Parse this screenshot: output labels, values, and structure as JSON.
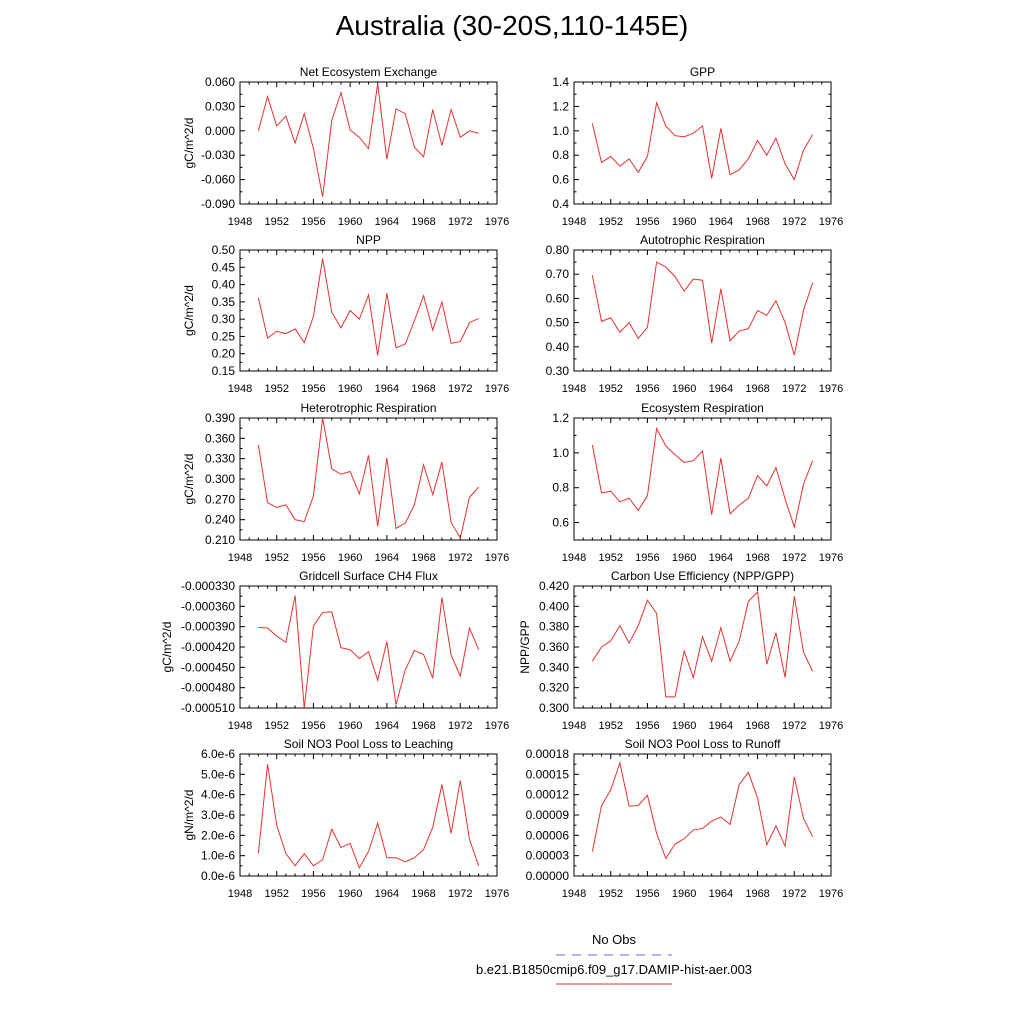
{
  "title": "Australia (30-20S,110-145E)",
  "legend": {
    "no_obs_label": "No Obs",
    "no_obs_color": "#6a6ad8",
    "case_label": "b.e21.B1850cmip6.f09_g17.DAMIP-hist-aer.003",
    "case_color": "#e63232"
  },
  "chart_data": [
    {
      "type": "line",
      "title": "Net Ecosystem Exchange",
      "ylabel": "gC/m^2/d",
      "xlim": [
        1948,
        1976
      ],
      "xticks": [
        1948,
        1952,
        1956,
        1960,
        1964,
        1968,
        1972,
        1976
      ],
      "ylim": [
        -0.09,
        0.06
      ],
      "yticks": [
        -0.09,
        -0.06,
        -0.03,
        0.0,
        0.03,
        0.06
      ],
      "yticklabels": [
        "-0.090",
        "-0.060",
        "-0.030",
        "0.000",
        "0.030",
        "0.060"
      ],
      "series": [
        {
          "x": [
            1950,
            1951,
            1952,
            1953,
            1954,
            1955,
            1956,
            1957,
            1958,
            1959,
            1960,
            1961,
            1962,
            1963,
            1964,
            1965,
            1966,
            1967,
            1968,
            1969,
            1970,
            1971,
            1972,
            1973,
            1974
          ],
          "y": [
            0.0,
            0.042,
            0.006,
            0.018,
            -0.015,
            0.021,
            -0.022,
            -0.081,
            0.013,
            0.047,
            0.001,
            -0.008,
            -0.022,
            0.058,
            -0.035,
            0.027,
            0.021,
            -0.02,
            -0.032,
            0.026,
            -0.018,
            0.026,
            -0.008,
            0.0,
            -0.003
          ],
          "color": "#e63232"
        }
      ]
    },
    {
      "type": "line",
      "title": "GPP",
      "ylabel": "",
      "xlim": [
        1948,
        1976
      ],
      "xticks": [
        1948,
        1952,
        1956,
        1960,
        1964,
        1968,
        1972,
        1976
      ],
      "ylim": [
        0.4,
        1.4
      ],
      "yticks": [
        0.4,
        0.6,
        0.8,
        1.0,
        1.2,
        1.4
      ],
      "yticklabels": [
        "0.4",
        "0.6",
        "0.8",
        "1.0",
        "1.2",
        "1.4"
      ],
      "series": [
        {
          "x": [
            1950,
            1951,
            1952,
            1953,
            1954,
            1955,
            1956,
            1957,
            1958,
            1959,
            1960,
            1961,
            1962,
            1963,
            1964,
            1965,
            1966,
            1967,
            1968,
            1969,
            1970,
            1971,
            1972,
            1973,
            1974
          ],
          "y": [
            1.06,
            0.74,
            0.79,
            0.71,
            0.77,
            0.66,
            0.79,
            1.23,
            1.04,
            0.96,
            0.95,
            0.98,
            1.04,
            0.61,
            1.02,
            0.64,
            0.68,
            0.77,
            0.92,
            0.8,
            0.94,
            0.73,
            0.6,
            0.84,
            0.97
          ],
          "color": "#e63232"
        }
      ]
    },
    {
      "type": "line",
      "title": "NPP",
      "ylabel": "gC/m^2/d",
      "xlim": [
        1948,
        1976
      ],
      "xticks": [
        1948,
        1952,
        1956,
        1960,
        1964,
        1968,
        1972,
        1976
      ],
      "ylim": [
        0.15,
        0.5
      ],
      "yticks": [
        0.15,
        0.2,
        0.25,
        0.3,
        0.35,
        0.4,
        0.45,
        0.5
      ],
      "yticklabels": [
        "0.15",
        "0.20",
        "0.25",
        "0.30",
        "0.35",
        "0.40",
        "0.45",
        "0.50"
      ],
      "series": [
        {
          "x": [
            1950,
            1951,
            1952,
            1953,
            1954,
            1955,
            1956,
            1957,
            1958,
            1959,
            1960,
            1961,
            1962,
            1963,
            1964,
            1965,
            1966,
            1967,
            1968,
            1969,
            1970,
            1971,
            1972,
            1973,
            1974
          ],
          "y": [
            0.362,
            0.245,
            0.265,
            0.258,
            0.272,
            0.232,
            0.308,
            0.475,
            0.32,
            0.275,
            0.325,
            0.3,
            0.37,
            0.195,
            0.375,
            0.217,
            0.228,
            0.295,
            0.368,
            0.268,
            0.35,
            0.23,
            0.235,
            0.29,
            0.302
          ],
          "color": "#e63232"
        }
      ]
    },
    {
      "type": "line",
      "title": "Autotrophic Respiration",
      "ylabel": "",
      "xlim": [
        1948,
        1976
      ],
      "xticks": [
        1948,
        1952,
        1956,
        1960,
        1964,
        1968,
        1972,
        1976
      ],
      "ylim": [
        0.3,
        0.8
      ],
      "yticks": [
        0.3,
        0.4,
        0.5,
        0.6,
        0.7,
        0.8
      ],
      "yticklabels": [
        "0.30",
        "0.40",
        "0.50",
        "0.60",
        "0.70",
        "0.80"
      ],
      "series": [
        {
          "x": [
            1950,
            1951,
            1952,
            1953,
            1954,
            1955,
            1956,
            1957,
            1958,
            1959,
            1960,
            1961,
            1962,
            1963,
            1964,
            1965,
            1966,
            1967,
            1968,
            1969,
            1970,
            1971,
            1972,
            1973,
            1974
          ],
          "y": [
            0.695,
            0.505,
            0.52,
            0.46,
            0.5,
            0.435,
            0.48,
            0.75,
            0.73,
            0.69,
            0.63,
            0.68,
            0.675,
            0.415,
            0.64,
            0.425,
            0.465,
            0.475,
            0.55,
            0.53,
            0.59,
            0.5,
            0.365,
            0.55,
            0.665
          ],
          "color": "#e63232"
        }
      ]
    },
    {
      "type": "line",
      "title": "Heterotrophic Respiration",
      "ylabel": "gC/m^2/d",
      "xlim": [
        1948,
        1976
      ],
      "xticks": [
        1948,
        1952,
        1956,
        1960,
        1964,
        1968,
        1972,
        1976
      ],
      "ylim": [
        0.21,
        0.39
      ],
      "yticks": [
        0.21,
        0.24,
        0.27,
        0.3,
        0.33,
        0.36,
        0.39
      ],
      "yticklabels": [
        "0.210",
        "0.240",
        "0.270",
        "0.300",
        "0.330",
        "0.360",
        "0.390"
      ],
      "series": [
        {
          "x": [
            1950,
            1951,
            1952,
            1953,
            1954,
            1955,
            1956,
            1957,
            1958,
            1959,
            1960,
            1961,
            1962,
            1963,
            1964,
            1965,
            1966,
            1967,
            1968,
            1969,
            1970,
            1971,
            1972,
            1973,
            1974
          ],
          "y": [
            0.35,
            0.265,
            0.258,
            0.262,
            0.24,
            0.237,
            0.275,
            0.39,
            0.315,
            0.307,
            0.311,
            0.278,
            0.335,
            0.23,
            0.331,
            0.227,
            0.235,
            0.262,
            0.321,
            0.277,
            0.325,
            0.236,
            0.213,
            0.273,
            0.288
          ],
          "color": "#e63232"
        }
      ]
    },
    {
      "type": "line",
      "title": "Ecosystem Respiration",
      "ylabel": "",
      "xlim": [
        1948,
        1976
      ],
      "xticks": [
        1948,
        1952,
        1956,
        1960,
        1964,
        1968,
        1972,
        1976
      ],
      "ylim": [
        0.5,
        1.2
      ],
      "yticks": [
        0.6,
        0.8,
        1.0,
        1.2
      ],
      "yticklabels": [
        "0.6",
        "0.8",
        "1.0",
        "1.2"
      ],
      "series": [
        {
          "x": [
            1950,
            1951,
            1952,
            1953,
            1954,
            1955,
            1956,
            1957,
            1958,
            1959,
            1960,
            1961,
            1962,
            1963,
            1964,
            1965,
            1966,
            1967,
            1968,
            1969,
            1970,
            1971,
            1972,
            1973,
            1974
          ],
          "y": [
            1.045,
            0.77,
            0.78,
            0.72,
            0.74,
            0.67,
            0.755,
            1.14,
            1.04,
            0.99,
            0.945,
            0.955,
            1.01,
            0.645,
            0.97,
            0.65,
            0.7,
            0.74,
            0.87,
            0.81,
            0.915,
            0.735,
            0.575,
            0.82,
            0.955
          ],
          "color": "#e63232"
        }
      ]
    },
    {
      "type": "line",
      "title": "Gridcell Surface CH4 Flux",
      "ylabel": "gC/m^2/d",
      "xlim": [
        1948,
        1976
      ],
      "xticks": [
        1948,
        1952,
        1956,
        1960,
        1964,
        1968,
        1972,
        1976
      ],
      "ylim": [
        -0.00051,
        -0.00033
      ],
      "yticks": [
        -0.00051,
        -0.00048,
        -0.00045,
        -0.00042,
        -0.00039,
        -0.00036,
        -0.00033
      ],
      "yticklabels": [
        "-0.000510",
        "-0.000480",
        "-0.000450",
        "-0.000420",
        "-0.000390",
        "-0.000360",
        "-0.000330"
      ],
      "series": [
        {
          "x": [
            1950,
            1951,
            1952,
            1953,
            1954,
            1955,
            1956,
            1957,
            1958,
            1959,
            1960,
            1961,
            1962,
            1963,
            1964,
            1965,
            1966,
            1967,
            1968,
            1969,
            1970,
            1971,
            1972,
            1973,
            1974
          ],
          "y": [
            -0.000391,
            -0.000392,
            -0.000404,
            -0.000413,
            -0.000344,
            -0.00051,
            -0.000389,
            -0.000369,
            -0.000368,
            -0.000421,
            -0.000424,
            -0.000437,
            -0.000427,
            -0.000469,
            -0.000412,
            -0.000505,
            -0.000454,
            -0.000425,
            -0.000431,
            -0.000466,
            -0.000347,
            -0.000432,
            -0.000463,
            -0.000392,
            -0.000424
          ],
          "color": "#e63232"
        }
      ]
    },
    {
      "type": "line",
      "title": "Carbon Use Efficiency (NPP/GPP)",
      "ylabel": "NPP/GPP",
      "xlim": [
        1948,
        1976
      ],
      "xticks": [
        1948,
        1952,
        1956,
        1960,
        1964,
        1968,
        1972,
        1976
      ],
      "ylim": [
        0.3,
        0.42
      ],
      "yticks": [
        0.3,
        0.32,
        0.34,
        0.36,
        0.38,
        0.4,
        0.42
      ],
      "yticklabels": [
        "0.300",
        "0.320",
        "0.340",
        "0.360",
        "0.380",
        "0.400",
        "0.420"
      ],
      "series": [
        {
          "x": [
            1950,
            1951,
            1952,
            1953,
            1954,
            1955,
            1956,
            1957,
            1958,
            1959,
            1960,
            1961,
            1962,
            1963,
            1964,
            1965,
            1966,
            1967,
            1968,
            1969,
            1970,
            1971,
            1972,
            1973,
            1974
          ],
          "y": [
            0.346,
            0.36,
            0.366,
            0.381,
            0.364,
            0.381,
            0.406,
            0.393,
            0.311,
            0.311,
            0.356,
            0.33,
            0.37,
            0.346,
            0.379,
            0.346,
            0.366,
            0.405,
            0.414,
            0.343,
            0.374,
            0.33,
            0.41,
            0.355,
            0.336
          ],
          "color": "#e63232"
        }
      ]
    },
    {
      "type": "line",
      "title": "Soil NO3 Pool Loss to Leaching",
      "ylabel": "gN/m^2/d",
      "xlim": [
        1948,
        1976
      ],
      "xticks": [
        1948,
        1952,
        1956,
        1960,
        1964,
        1968,
        1972,
        1976
      ],
      "ylim": [
        0.0,
        6e-06
      ],
      "yticks": [
        0,
        1e-06,
        2e-06,
        3e-06,
        4e-06,
        5e-06,
        6e-06
      ],
      "yticklabels": [
        "0.0e-6",
        "1.0e-6",
        "2.0e-6",
        "3.0e-6",
        "4.0e-6",
        "5.0e-6",
        "6.0e-6"
      ],
      "series": [
        {
          "x": [
            1950,
            1951,
            1952,
            1953,
            1954,
            1955,
            1956,
            1957,
            1958,
            1959,
            1960,
            1961,
            1962,
            1963,
            1964,
            1965,
            1966,
            1967,
            1968,
            1969,
            1970,
            1971,
            1972,
            1973,
            1974
          ],
          "y": [
            1.1e-06,
            5.5e-06,
            2.5e-06,
            1.1e-06,
            5e-07,
            1.1e-06,
            5e-07,
            8e-07,
            2.3e-06,
            1.4e-06,
            1.6e-06,
            4e-07,
            1.2e-06,
            2.6e-06,
            9e-07,
            9e-07,
            7e-07,
            9e-07,
            1.3e-06,
            2.4e-06,
            4.5e-06,
            2.1e-06,
            4.7e-06,
            1.8e-06,
            5e-07
          ],
          "color": "#e63232"
        }
      ]
    },
    {
      "type": "line",
      "title": "Soil NO3 Pool Loss to Runoff",
      "ylabel": "",
      "xlim": [
        1948,
        1976
      ],
      "xticks": [
        1948,
        1952,
        1956,
        1960,
        1964,
        1968,
        1972,
        1976
      ],
      "ylim": [
        0.0,
        0.00018
      ],
      "yticks": [
        0,
        3e-05,
        6e-05,
        9e-05,
        0.00012,
        0.00015,
        0.00018
      ],
      "yticklabels": [
        "0.00000",
        "0.00003",
        "0.00006",
        "0.00009",
        "0.00012",
        "0.00015",
        "0.00018"
      ],
      "series": [
        {
          "x": [
            1950,
            1951,
            1952,
            1953,
            1954,
            1955,
            1956,
            1957,
            1958,
            1959,
            1960,
            1961,
            1962,
            1963,
            1964,
            1965,
            1966,
            1967,
            1968,
            1969,
            1970,
            1971,
            1972,
            1973,
            1974
          ],
          "y": [
            3.6e-05,
            0.000104,
            0.000127,
            0.000167,
            0.000103,
            0.000104,
            0.000119,
            6.3e-05,
            2.6e-05,
            4.7e-05,
            5.5e-05,
            6.8e-05,
            7e-05,
            8.1e-05,
            8.7e-05,
            7.6e-05,
            0.000135,
            0.000153,
            0.000115,
            4.6e-05,
            7.4e-05,
            4.4e-05,
            0.000146,
            8.5e-05,
            5.8e-05
          ],
          "color": "#e63232"
        }
      ]
    }
  ]
}
